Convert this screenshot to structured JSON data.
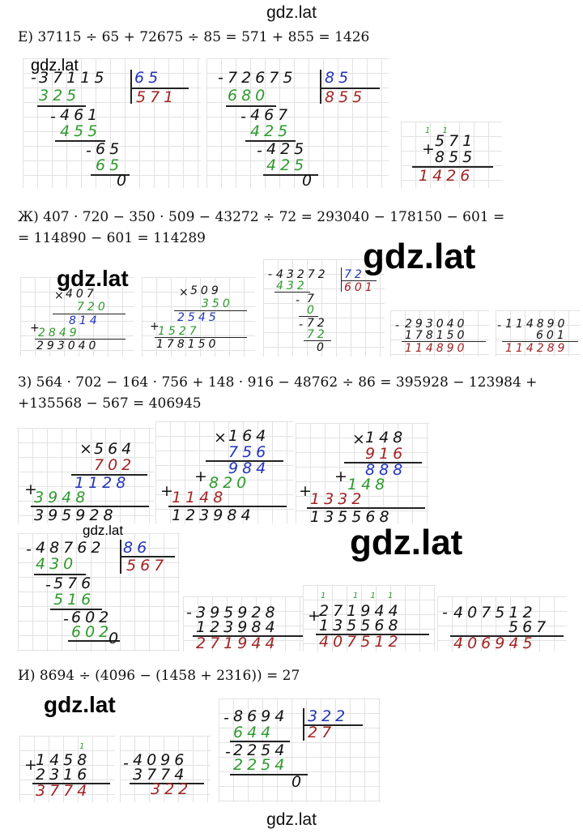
{
  "watermark": "gdz.lat",
  "problems": [
    {
      "id": "E",
      "text": "Е) 37115 ÷ 65 + 72675 ÷ 85 = 571 + 855 = 1426"
    },
    {
      "id": "Zh",
      "line1": "Ж) 407 · 720 − 350 · 509 − 43272 ÷ 72 = 293040 − 178150 − 601 =",
      "line2": "= 114890 − 601 = 114289"
    },
    {
      "id": "Z",
      "line1": "З) 564 · 702 − 164 · 756 + 148 · 916 − 48762 ÷ 86 = 395928 − 123984 +",
      "line2": "+135568 − 567 = 406945"
    },
    {
      "id": "I",
      "text": "И) 8694 ÷ (4096 − (1458 + 2316)) = 27"
    }
  ],
  "work": {
    "e_div1": {
      "dividend": "37115",
      "divisor": "65",
      "quotient": "571",
      "steps": [
        "325",
        "461",
        "455",
        "65",
        "65",
        "0"
      ]
    },
    "e_div2": {
      "dividend": "72675",
      "divisor": "85",
      "quotient": "855",
      "steps": [
        "680",
        "467",
        "425",
        "425",
        "425",
        "0"
      ]
    },
    "e_add": {
      "carry": "1 1",
      "a": "571",
      "b": "855",
      "sum": "1426"
    },
    "zh_mul1": {
      "a": "407",
      "b": "720",
      "p1": "814",
      "p2": "2849",
      "result": "293040"
    },
    "zh_mul2": {
      "a": "509",
      "b": "350",
      "p1": "2545",
      "p2": "1527",
      "result": "178150"
    },
    "zh_div": {
      "dividend": "43272",
      "divisor": "72",
      "quotient": "601",
      "steps": [
        "432",
        "7",
        "0",
        "72",
        "72",
        "0"
      ]
    },
    "zh_sub1": {
      "a": "293040",
      "b": "178150",
      "result": "114890"
    },
    "zh_sub2": {
      "a": "114890",
      "b": "601",
      "result": "114289"
    },
    "z_mul1": {
      "a": "564",
      "b": "702",
      "p1": "1128",
      "p2": "3948",
      "result": "395928"
    },
    "z_mul2": {
      "a": "164",
      "b": "756",
      "p1": "984",
      "p2": "820",
      "p3": "1148",
      "result": "123984"
    },
    "z_mul3": {
      "a": "148",
      "b": "916",
      "p1": "888",
      "p2": "148",
      "p3": "1332",
      "result": "135568"
    },
    "z_div": {
      "dividend": "48762",
      "divisor": "86",
      "quotient": "567",
      "steps": [
        "430",
        "576",
        "516",
        "602",
        "602",
        "0"
      ]
    },
    "z_sub1": {
      "a": "395928",
      "b": "123984",
      "result": "271944"
    },
    "z_add": {
      "carry": "1   1 1 1",
      "a": "271944",
      "b": "135568",
      "result": "407512"
    },
    "z_sub2": {
      "a": "407512",
      "b": "567",
      "result": "406945"
    },
    "i_add": {
      "carry": "1",
      "a": "1458",
      "b": "2316",
      "result": "3774"
    },
    "i_sub": {
      "a": "4096",
      "b": "3774",
      "result": "322"
    },
    "i_div": {
      "dividend": "8694",
      "divisor": "322",
      "quotient": "27",
      "steps": [
        "644",
        "2254",
        "2254",
        "0"
      ]
    }
  }
}
